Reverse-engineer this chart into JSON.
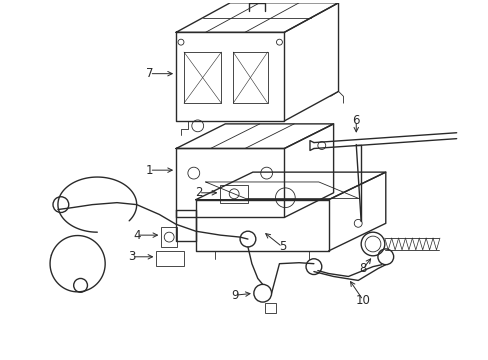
{
  "bg_color": "#ffffff",
  "line_color": "#2a2a2a",
  "lw": 1.0,
  "tlw": 0.6,
  "figsize": [
    4.89,
    3.6
  ],
  "dpi": 100
}
